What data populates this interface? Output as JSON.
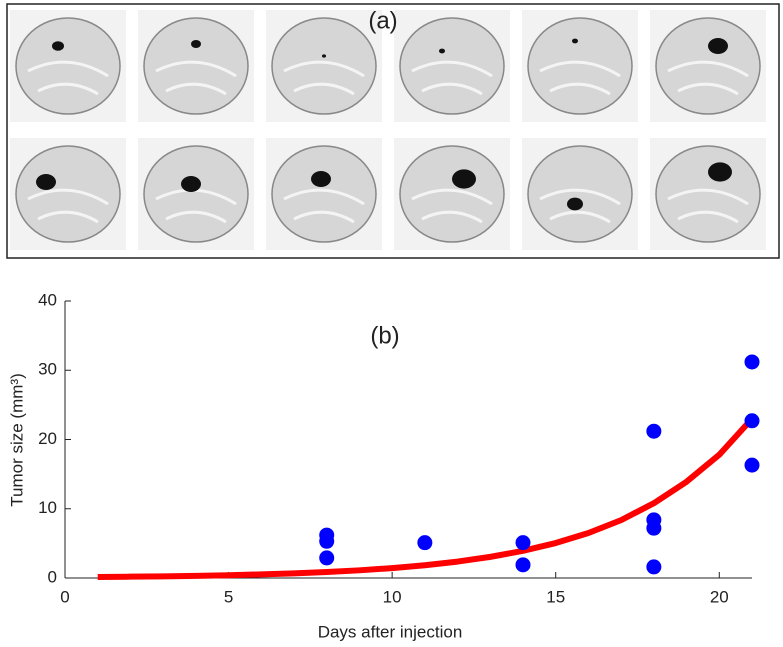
{
  "panel_a": {
    "label": "(a)"
  },
  "chart_data": {
    "type": "scatter",
    "annotation": "(b)",
    "x_label": "Days after injection",
    "y_label": "Tumor size (mm³)",
    "xlim": [
      0,
      21
    ],
    "xticks": [
      0,
      5,
      10,
      15,
      20
    ],
    "ylim": [
      0,
      40
    ],
    "yticks": [
      0,
      10,
      20,
      30,
      40
    ],
    "series": [
      {
        "type": "scatter",
        "color": "#0000ff",
        "x": [
          8,
          8,
          8,
          11,
          14,
          14,
          18,
          18,
          18,
          18,
          21,
          21,
          21
        ],
        "values": [
          6.2,
          5.3,
          2.9,
          5.1,
          5.1,
          1.9,
          21.2,
          8.4,
          7.2,
          1.6,
          31.2,
          22.7,
          16.3
        ]
      },
      {
        "type": "line",
        "color": "#ff0000",
        "x": [
          1,
          2,
          3,
          4,
          5,
          6,
          7,
          8,
          9,
          10,
          11,
          12,
          13,
          14,
          15,
          16,
          17,
          18,
          19,
          20,
          21
        ],
        "values": [
          0.15,
          0.19,
          0.24,
          0.31,
          0.4,
          0.52,
          0.67,
          0.86,
          1.11,
          1.43,
          1.84,
          2.37,
          3.05,
          3.92,
          5.05,
          6.5,
          8.36,
          10.8,
          13.9,
          17.8,
          23.0
        ]
      }
    ]
  }
}
